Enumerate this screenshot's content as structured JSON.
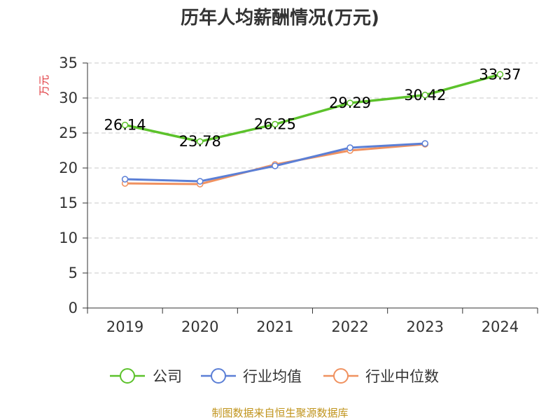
{
  "chart_data": {
    "type": "line",
    "title": "历年人均薪酬情况(万元)",
    "xlabel": "",
    "ylabel": "万元",
    "categories": [
      "2019",
      "2020",
      "2021",
      "2022",
      "2023",
      "2024"
    ],
    "ylim": [
      0,
      35
    ],
    "yticks": [
      0,
      5,
      10,
      15,
      20,
      25,
      30,
      35
    ],
    "grid": true,
    "legend_position": "bottom",
    "series": [
      {
        "name": "公司",
        "color": "#5cc22b",
        "values": [
          26.14,
          23.78,
          26.25,
          29.29,
          30.42,
          33.37
        ],
        "labels": [
          "26.14",
          "23.78",
          "26.25",
          "29.29",
          "30.42",
          "33.37"
        ]
      },
      {
        "name": "行业均值",
        "color": "#5b7fd6",
        "values": [
          18.4,
          18.1,
          20.3,
          22.9,
          23.5,
          null
        ]
      },
      {
        "name": "行业中位数",
        "color": "#f0915f",
        "values": [
          17.8,
          17.7,
          20.5,
          22.5,
          23.4,
          null
        ]
      }
    ],
    "source": "制图数据来自恒生聚源数据库"
  }
}
